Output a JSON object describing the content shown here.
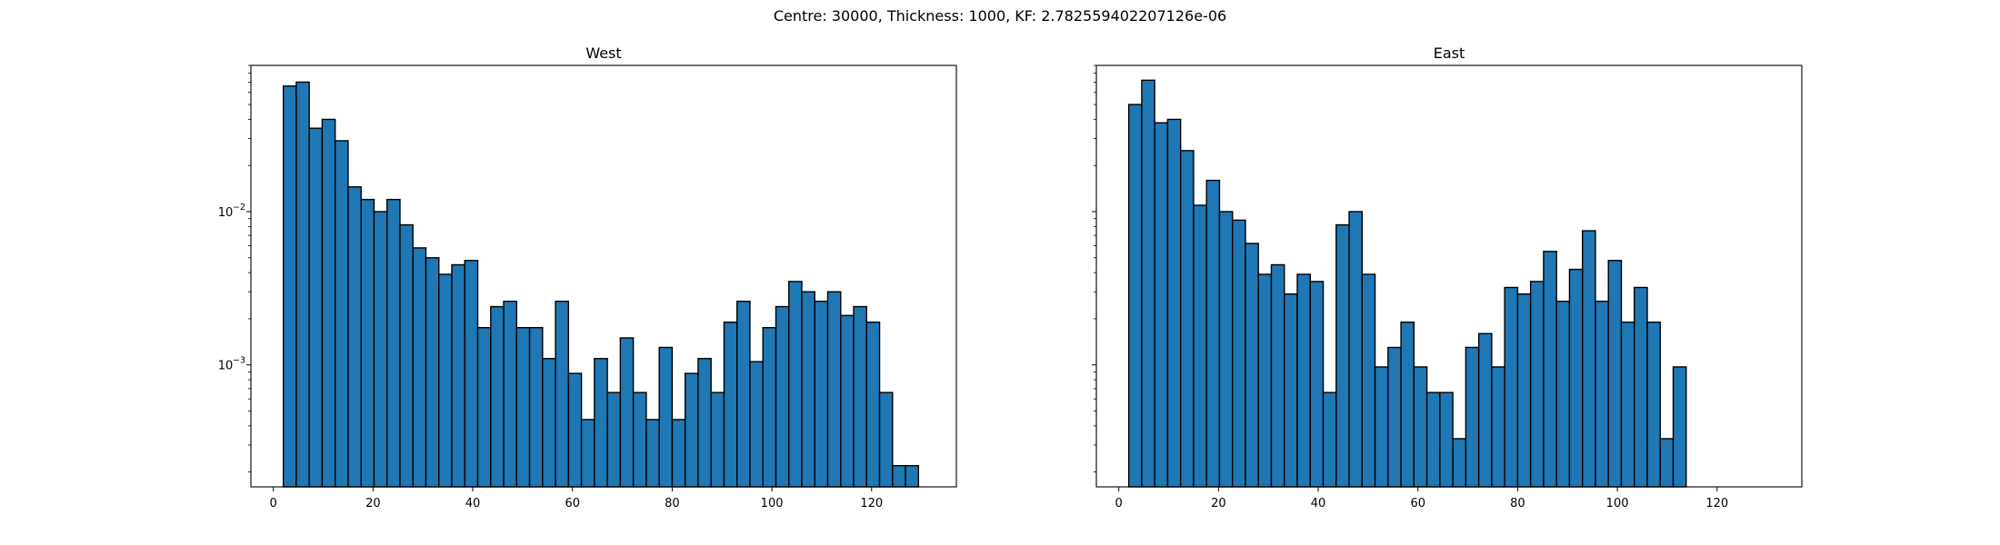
{
  "figure": {
    "title": "Centre: 30000, Thickness: 1000, KF: 2.782559402207126e-06"
  },
  "chart_data": [
    {
      "type": "bar",
      "title": "West",
      "yscale": "log",
      "xlim": [
        -4.5,
        137
      ],
      "ylim": [
        0.00016,
        0.09
      ],
      "bin_width": 2.6,
      "x_start": 2,
      "xticks": [
        0,
        20,
        40,
        60,
        80,
        100,
        120
      ],
      "yticks": [
        {
          "value": 0.01,
          "label": "10",
          "exp": "-2"
        },
        {
          "value": 0.001,
          "label": "10",
          "exp": "-3"
        }
      ],
      "values": [
        0.066,
        0.07,
        0.035,
        0.04,
        0.029,
        0.0145,
        0.012,
        0.01,
        0.012,
        0.0082,
        0.0058,
        0.005,
        0.0039,
        0.0045,
        0.0048,
        0.00175,
        0.0024,
        0.0026,
        0.00175,
        0.00175,
        0.0011,
        0.0026,
        0.00088,
        0.00044,
        0.0011,
        0.00066,
        0.0015,
        0.00066,
        0.00044,
        0.0013,
        0.00044,
        0.00088,
        0.0011,
        0.00066,
        0.0019,
        0.0026,
        0.00105,
        0.00175,
        0.0024,
        0.0035,
        0.003,
        0.0026,
        0.003,
        0.0021,
        0.0024,
        0.0019,
        0.00066,
        0.00022,
        0.00022
      ],
      "bar_color": "#1f77b4",
      "edge_color": "#000000"
    },
    {
      "type": "bar",
      "title": "East",
      "yscale": "log",
      "xlim": [
        -4.5,
        137
      ],
      "ylim": [
        0.00016,
        0.09
      ],
      "bin_width": 2.6,
      "x_start": 2,
      "xticks": [
        0,
        20,
        40,
        60,
        80,
        100,
        120
      ],
      "yticks": [
        {
          "value": 0.01,
          "label": "",
          "exp": ""
        },
        {
          "value": 0.001,
          "label": "",
          "exp": ""
        }
      ],
      "values": [
        0.05,
        0.072,
        0.038,
        0.04,
        0.025,
        0.011,
        0.016,
        0.01,
        0.0088,
        0.0062,
        0.0039,
        0.0045,
        0.0029,
        0.0039,
        0.0035,
        0.00066,
        0.0082,
        0.01,
        0.0039,
        0.00097,
        0.0013,
        0.0019,
        0.00097,
        0.00066,
        0.00066,
        0.00033,
        0.0013,
        0.0016,
        0.00097,
        0.0032,
        0.0029,
        0.0035,
        0.0055,
        0.0026,
        0.0042,
        0.0075,
        0.0026,
        0.0048,
        0.0019,
        0.0032,
        0.0019,
        0.00033,
        0.00097
      ],
      "bar_color": "#1f77b4",
      "edge_color": "#000000"
    }
  ]
}
